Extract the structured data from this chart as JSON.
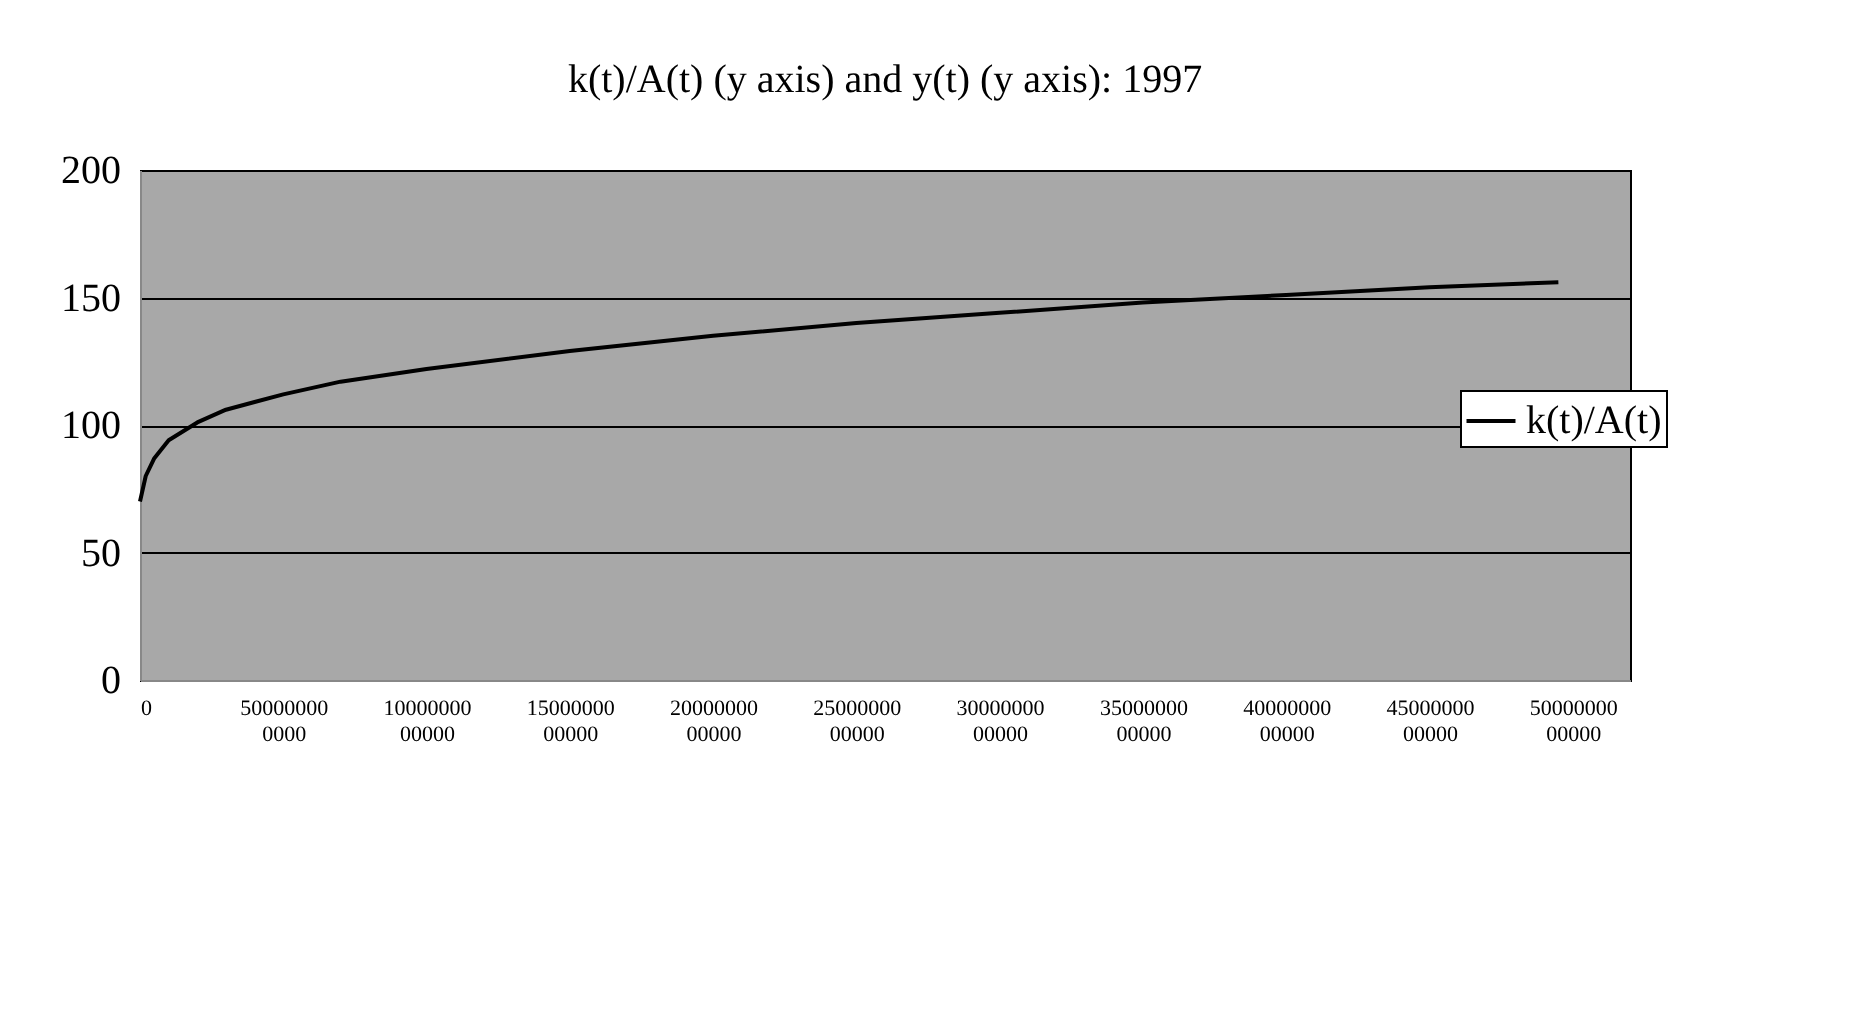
{
  "chart_data": {
    "type": "line",
    "title": "k(t)/A(t) (y axis) and y(t) (y axis): 1997",
    "x": [
      0,
      20000000000,
      50000000000,
      100000000000,
      200000000000,
      300000000000,
      400000000000,
      500000000000,
      700000000000,
      1000000000000,
      1500000000000,
      2000000000000,
      2500000000000,
      3000000000000,
      3500000000000,
      4000000000000,
      4500000000000,
      4950000000000
    ],
    "series": [
      {
        "name": "k(t)/A(t)",
        "color": "#000000",
        "values": [
          70,
          80,
          87,
          94,
          101,
          106,
          109,
          112,
          117,
          122,
          129,
          135,
          140,
          144,
          148,
          151,
          154,
          156
        ]
      }
    ],
    "xlim": [
      0,
      5200000000000
    ],
    "xticks": [
      0,
      500000000000,
      1000000000000,
      1500000000000,
      2000000000000,
      2500000000000,
      3000000000000,
      3500000000000,
      4000000000000,
      4500000000000,
      5000000000000
    ],
    "ylim": [
      0,
      200
    ],
    "yticks": [
      0,
      50,
      100,
      150,
      200
    ],
    "grid": "y",
    "legend": "right",
    "marker": "none",
    "line_style": "solid"
  }
}
